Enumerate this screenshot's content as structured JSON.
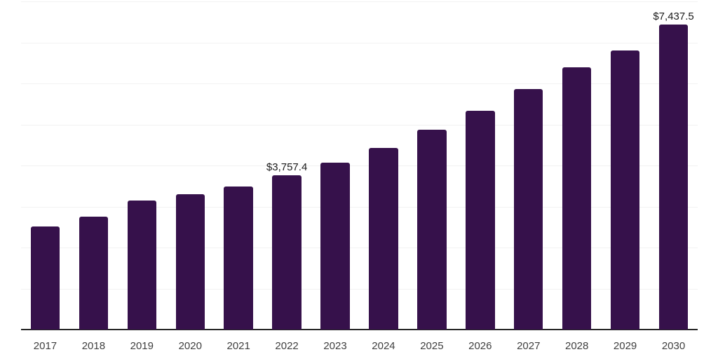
{
  "chart_data": {
    "type": "bar",
    "title": "",
    "xlabel": "",
    "ylabel": "",
    "categories": [
      "2017",
      "2018",
      "2019",
      "2020",
      "2021",
      "2022",
      "2023",
      "2024",
      "2025",
      "2026",
      "2027",
      "2028",
      "2029",
      "2030"
    ],
    "values": [
      2505,
      2755,
      3150,
      3295,
      3480,
      3757.4,
      4070,
      4425,
      4880,
      5330,
      5870,
      6390,
      6795,
      7437.5
    ],
    "data_labels": [
      "",
      "",
      "",
      "",
      "",
      "$3,757.4",
      "",
      "",
      "",
      "",
      "",
      "",
      "",
      "$7,437.5"
    ],
    "ylim": [
      0,
      8000
    ],
    "grid_step": 1000,
    "grid": "horizontal",
    "legend_position": "none",
    "colors": {
      "bar": "#36114b",
      "axis_line": "#262626",
      "gridline": "#f2f2f2",
      "tick_label": "#404040",
      "data_label": "#1a1a1a",
      "background": "#ffffff"
    }
  }
}
